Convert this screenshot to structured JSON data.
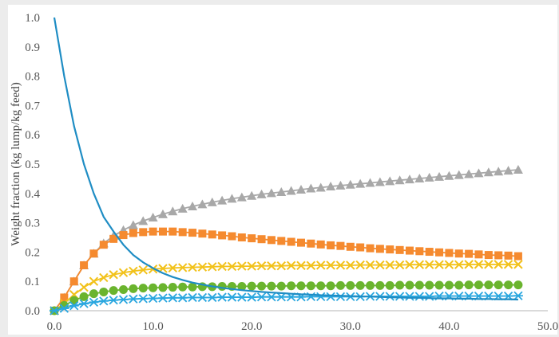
{
  "chart_data": {
    "type": "line",
    "title": "",
    "xlabel": "",
    "ylabel": "Weight fraction (kg lump/kg feed)",
    "xlim": [
      0,
      50
    ],
    "ylim": [
      0,
      1
    ],
    "x_ticks": [
      "0.0",
      "10.0",
      "20.0",
      "30.0",
      "40.0",
      "50.0"
    ],
    "y_ticks": [
      "0.0",
      "0.1",
      "0.2",
      "0.3",
      "0.4",
      "0.5",
      "0.6",
      "0.7",
      "0.8",
      "0.9",
      "1.0"
    ],
    "grid": false,
    "legend": "none",
    "x": [
      0,
      1,
      2,
      3,
      4,
      5,
      6,
      7,
      8,
      9,
      10,
      11,
      12,
      13,
      14,
      15,
      16,
      17,
      18,
      19,
      20,
      21,
      22,
      23,
      24,
      25,
      26,
      27,
      28,
      29,
      30,
      31,
      32,
      33,
      34,
      35,
      36,
      37,
      38,
      39,
      40,
      41,
      42,
      43,
      44,
      45,
      46,
      47
    ],
    "series": [
      {
        "color": "#1f8dc4",
        "marker": "none",
        "values": [
          1.0,
          0.8,
          0.63,
          0.5,
          0.4,
          0.32,
          0.27,
          0.225,
          0.19,
          0.165,
          0.145,
          0.128,
          0.115,
          0.105,
          0.096,
          0.089,
          0.083,
          0.078,
          0.074,
          0.07,
          0.067,
          0.064,
          0.062,
          0.06,
          0.058,
          0.056,
          0.055,
          0.053,
          0.052,
          0.051,
          0.05,
          0.049,
          0.048,
          0.047,
          0.046,
          0.045,
          0.044,
          0.044,
          0.043,
          0.042,
          0.042,
          0.041,
          0.041,
          0.04,
          0.04,
          0.039,
          0.039,
          0.038
        ]
      },
      {
        "color": "#f58a2f",
        "marker": "square",
        "values": [
          0.0,
          0.045,
          0.1,
          0.155,
          0.195,
          0.225,
          0.245,
          0.258,
          0.265,
          0.268,
          0.27,
          0.27,
          0.27,
          0.268,
          0.266,
          0.263,
          0.26,
          0.257,
          0.254,
          0.25,
          0.247,
          0.244,
          0.241,
          0.238,
          0.235,
          0.232,
          0.229,
          0.226,
          0.223,
          0.221,
          0.218,
          0.216,
          0.213,
          0.211,
          0.209,
          0.207,
          0.205,
          0.203,
          0.201,
          0.199,
          0.197,
          0.195,
          0.194,
          0.192,
          0.19,
          0.189,
          0.188,
          0.186
        ]
      },
      {
        "color": "#a8a8a8",
        "marker": "triangle",
        "values": [
          0.0,
          0.045,
          0.1,
          0.155,
          0.195,
          0.23,
          0.255,
          0.275,
          0.292,
          0.306,
          0.318,
          0.329,
          0.339,
          0.348,
          0.356,
          0.363,
          0.37,
          0.376,
          0.382,
          0.387,
          0.392,
          0.397,
          0.401,
          0.405,
          0.409,
          0.413,
          0.417,
          0.42,
          0.424,
          0.427,
          0.43,
          0.433,
          0.436,
          0.439,
          0.442,
          0.445,
          0.448,
          0.451,
          0.454,
          0.457,
          0.46,
          0.463,
          0.466,
          0.469,
          0.472,
          0.475,
          0.478,
          0.481
        ]
      },
      {
        "color": "#f2c21b",
        "marker": "x",
        "values": [
          0.0,
          0.025,
          0.055,
          0.08,
          0.1,
          0.113,
          0.123,
          0.13,
          0.135,
          0.139,
          0.142,
          0.144,
          0.146,
          0.147,
          0.148,
          0.149,
          0.15,
          0.151,
          0.151,
          0.152,
          0.152,
          0.153,
          0.153,
          0.153,
          0.154,
          0.154,
          0.154,
          0.155,
          0.155,
          0.155,
          0.155,
          0.156,
          0.156,
          0.156,
          0.156,
          0.156,
          0.157,
          0.157,
          0.157,
          0.157,
          0.157,
          0.157,
          0.158,
          0.158,
          0.158,
          0.158,
          0.158,
          0.158
        ]
      },
      {
        "color": "#6ab42e",
        "marker": "circle",
        "values": [
          0.0,
          0.018,
          0.035,
          0.048,
          0.058,
          0.064,
          0.069,
          0.072,
          0.075,
          0.077,
          0.078,
          0.079,
          0.08,
          0.081,
          0.081,
          0.082,
          0.082,
          0.083,
          0.083,
          0.083,
          0.084,
          0.084,
          0.084,
          0.084,
          0.085,
          0.085,
          0.085,
          0.085,
          0.085,
          0.086,
          0.086,
          0.086,
          0.086,
          0.086,
          0.086,
          0.087,
          0.087,
          0.087,
          0.087,
          0.087,
          0.087,
          0.087,
          0.088,
          0.088,
          0.088,
          0.088,
          0.088,
          0.088
        ]
      },
      {
        "color": "#2aa7df",
        "marker": "star",
        "values": [
          0.0,
          0.008,
          0.017,
          0.024,
          0.029,
          0.033,
          0.036,
          0.038,
          0.04,
          0.041,
          0.042,
          0.043,
          0.044,
          0.044,
          0.045,
          0.045,
          0.045,
          0.046,
          0.046,
          0.046,
          0.046,
          0.047,
          0.047,
          0.047,
          0.047,
          0.047,
          0.048,
          0.048,
          0.048,
          0.048,
          0.048,
          0.048,
          0.049,
          0.049,
          0.049,
          0.049,
          0.049,
          0.049,
          0.049,
          0.05,
          0.05,
          0.05,
          0.05,
          0.05,
          0.05,
          0.05,
          0.05,
          0.051
        ]
      }
    ]
  }
}
